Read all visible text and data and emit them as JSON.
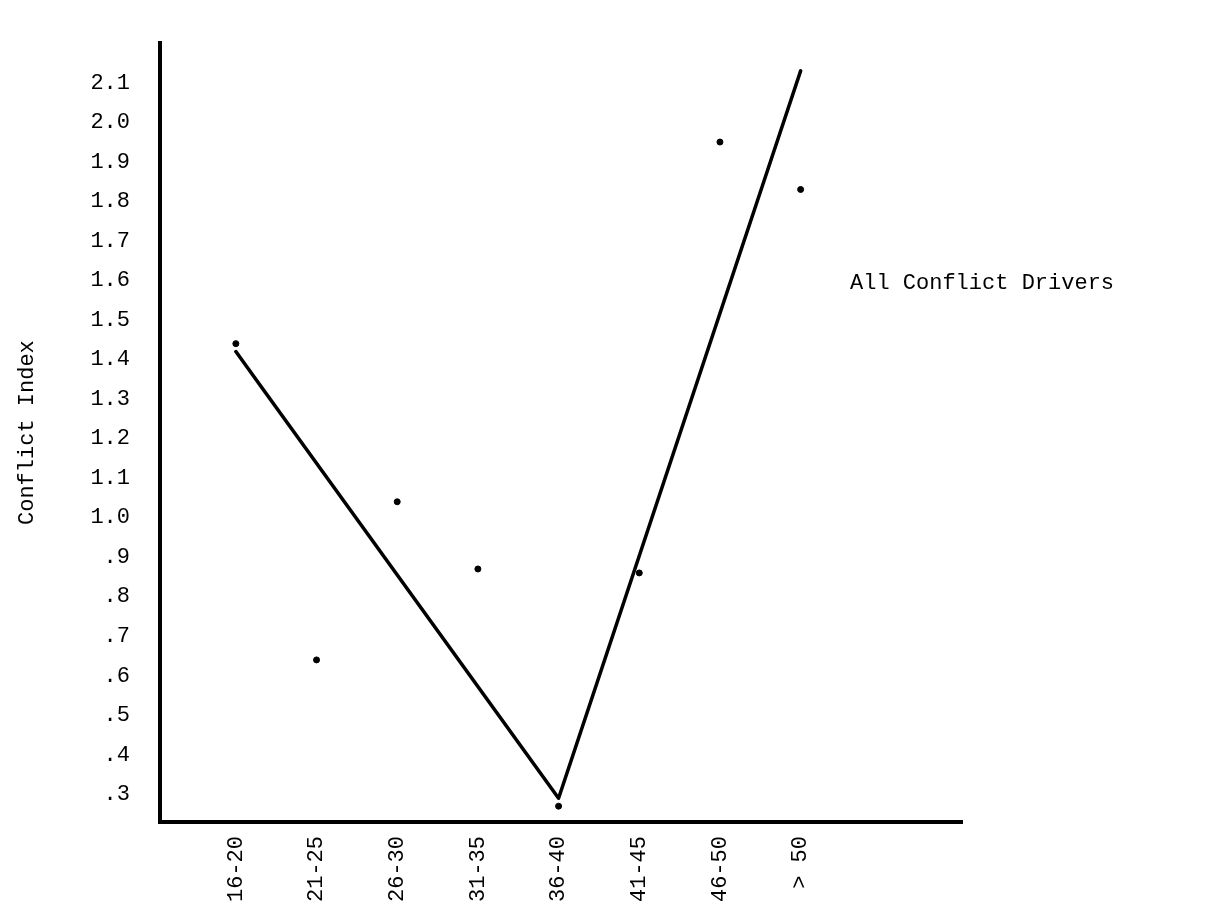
{
  "chart_data": {
    "type": "scatter",
    "ylabel": "Conflict Index",
    "categories": [
      "16-20",
      "21-25",
      "26-30",
      "31-35",
      "36-40",
      "41-45",
      "46-50",
      "> 50"
    ],
    "series": [
      {
        "color": "#000000",
        "values": [
          1.44,
          0.64,
          1.04,
          0.87,
          0.27,
          0.86,
          1.95,
          1.83
        ]
      },
      {
        "type": "line",
        "color": "#000000",
        "x": [
          "16-20",
          "36-40",
          "> 50"
        ],
        "values": [
          1.42,
          0.29,
          2.13
        ]
      }
    ],
    "ylim": [
      0.23,
      2.2
    ],
    "yticks": [
      {
        "value": 0.3,
        "label": ".3"
      },
      {
        "value": 0.4,
        "label": ".4"
      },
      {
        "value": 0.5,
        "label": ".5"
      },
      {
        "value": 0.6,
        "label": ".6"
      },
      {
        "value": 0.7,
        "label": ".7"
      },
      {
        "value": 0.8,
        "label": ".8"
      },
      {
        "value": 0.9,
        "label": ".9"
      },
      {
        "value": 1.0,
        "label": "1.0"
      },
      {
        "value": 1.1,
        "label": "1.1"
      },
      {
        "value": 1.2,
        "label": "1.2"
      },
      {
        "value": 1.3,
        "label": "1.3"
      },
      {
        "value": 1.4,
        "label": "1.4"
      },
      {
        "value": 1.5,
        "label": "1.5"
      },
      {
        "value": 1.6,
        "label": "1.6"
      },
      {
        "value": 1.7,
        "label": "1.7"
      },
      {
        "value": 1.8,
        "label": "1.8"
      },
      {
        "value": 1.9,
        "label": "1.9"
      },
      {
        "value": 2.0,
        "label": "2.0"
      },
      {
        "value": 2.1,
        "label": "2.1"
      }
    ],
    "annotations": [
      "All Conflict Drivers"
    ],
    "grid": false,
    "legend": false
  }
}
